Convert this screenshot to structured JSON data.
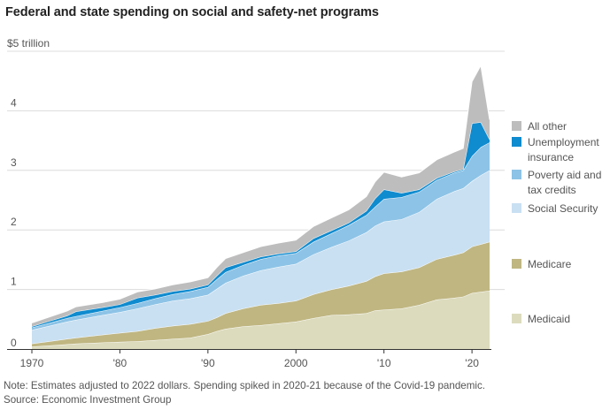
{
  "chart_data": {
    "type": "area",
    "stacked": true,
    "title": "Federal and state spending on social and safety-net programs",
    "ylabel": "$5 trillion",
    "xlabel": "",
    "ylim": [
      0,
      5
    ],
    "xlim": [
      1970,
      2022
    ],
    "y_ticks": [
      {
        "value": 0,
        "label": "0"
      },
      {
        "value": 1,
        "label": "1"
      },
      {
        "value": 2,
        "label": "2"
      },
      {
        "value": 3,
        "label": "3"
      },
      {
        "value": 4,
        "label": "4"
      },
      {
        "value": 5,
        "label": "$5 trillion"
      }
    ],
    "x_ticks": [
      {
        "value": 1970,
        "label": "1970"
      },
      {
        "value": 1980,
        "label": "'80"
      },
      {
        "value": 1990,
        "label": "'90"
      },
      {
        "value": 2000,
        "label": "2000"
      },
      {
        "value": 2010,
        "label": "'10"
      },
      {
        "value": 2020,
        "label": "'20"
      }
    ],
    "grid": true,
    "legend_position": "right",
    "x": [
      1970,
      1972,
      1974,
      1975,
      1978,
      1980,
      1982,
      1984,
      1986,
      1988,
      1990,
      1991,
      1992,
      1994,
      1996,
      1998,
      2000,
      2002,
      2004,
      2006,
      2008,
      2009,
      2010,
      2012,
      2014,
      2016,
      2018,
      2019,
      2020,
      2021,
      2022
    ],
    "series": [
      {
        "name": "Medicaid",
        "color": "#dcdbbd",
        "values": [
          0.04,
          0.06,
          0.08,
          0.09,
          0.11,
          0.12,
          0.13,
          0.15,
          0.17,
          0.19,
          0.25,
          0.3,
          0.34,
          0.38,
          0.4,
          0.43,
          0.46,
          0.52,
          0.57,
          0.58,
          0.6,
          0.65,
          0.66,
          0.68,
          0.74,
          0.83,
          0.86,
          0.88,
          0.94,
          0.96,
          0.98
        ]
      },
      {
        "name": "Medicare",
        "color": "#bfb682",
        "values": [
          0.05,
          0.07,
          0.09,
          0.1,
          0.13,
          0.15,
          0.17,
          0.2,
          0.22,
          0.23,
          0.22,
          0.23,
          0.26,
          0.3,
          0.34,
          0.34,
          0.35,
          0.4,
          0.43,
          0.48,
          0.54,
          0.57,
          0.61,
          0.62,
          0.63,
          0.68,
          0.72,
          0.74,
          0.78,
          0.8,
          0.82
        ]
      },
      {
        "name": "Social Security",
        "color": "#c9e0f2",
        "values": [
          0.23,
          0.26,
          0.29,
          0.3,
          0.33,
          0.35,
          0.38,
          0.4,
          0.42,
          0.43,
          0.44,
          0.48,
          0.51,
          0.55,
          0.58,
          0.61,
          0.62,
          0.67,
          0.71,
          0.76,
          0.82,
          0.85,
          0.87,
          0.88,
          0.93,
          1.01,
          1.07,
          1.08,
          1.1,
          1.16,
          1.2
        ]
      },
      {
        "name": "Poverty aid and tax credits",
        "color": "#8dc3e6",
        "values": [
          0.04,
          0.05,
          0.06,
          0.06,
          0.07,
          0.08,
          0.09,
          0.1,
          0.11,
          0.12,
          0.13,
          0.16,
          0.18,
          0.18,
          0.19,
          0.19,
          0.18,
          0.21,
          0.23,
          0.26,
          0.29,
          0.32,
          0.38,
          0.37,
          0.34,
          0.32,
          0.31,
          0.3,
          0.42,
          0.47,
          0.47
        ]
      },
      {
        "name": "Unemployment insurance",
        "color": "#0f8bcf",
        "values": [
          0.02,
          0.03,
          0.04,
          0.08,
          0.06,
          0.05,
          0.09,
          0.06,
          0.05,
          0.04,
          0.04,
          0.06,
          0.08,
          0.05,
          0.04,
          0.03,
          0.03,
          0.06,
          0.05,
          0.04,
          0.07,
          0.14,
          0.16,
          0.07,
          0.04,
          0.03,
          0.02,
          0.02,
          0.55,
          0.42,
          0.05
        ]
      },
      {
        "name": "All other",
        "color": "#bdbdbd",
        "values": [
          0.06,
          0.07,
          0.08,
          0.08,
          0.08,
          0.09,
          0.1,
          0.1,
          0.11,
          0.12,
          0.12,
          0.14,
          0.15,
          0.16,
          0.17,
          0.18,
          0.19,
          0.2,
          0.21,
          0.22,
          0.24,
          0.28,
          0.29,
          0.27,
          0.28,
          0.31,
          0.33,
          0.35,
          0.7,
          0.95,
          0.33
        ]
      }
    ]
  },
  "legend": [
    {
      "name": "All other",
      "lines": [
        "All other"
      ],
      "color": "#bdbdbd"
    },
    {
      "name": "Unemployment insurance",
      "lines": [
        "Unemployment",
        "insurance"
      ],
      "color": "#0f8bcf"
    },
    {
      "name": "Poverty aid and tax credits",
      "lines": [
        "Poverty aid and",
        "tax credits"
      ],
      "color": "#8dc3e6"
    },
    {
      "name": "Social Security",
      "lines": [
        "Social Security"
      ],
      "color": "#c9e0f2"
    },
    {
      "name": "Medicare",
      "lines": [
        "Medicare"
      ],
      "color": "#bfb682"
    },
    {
      "name": "Medicaid",
      "lines": [
        "Medicaid"
      ],
      "color": "#dcdbbd"
    }
  ],
  "note": "Note: Estimates adjusted to 2022 dollars. Spending spiked in 2020-21 because of the Covid-19 pandemic.",
  "source": "Source: Economic Investment Group"
}
